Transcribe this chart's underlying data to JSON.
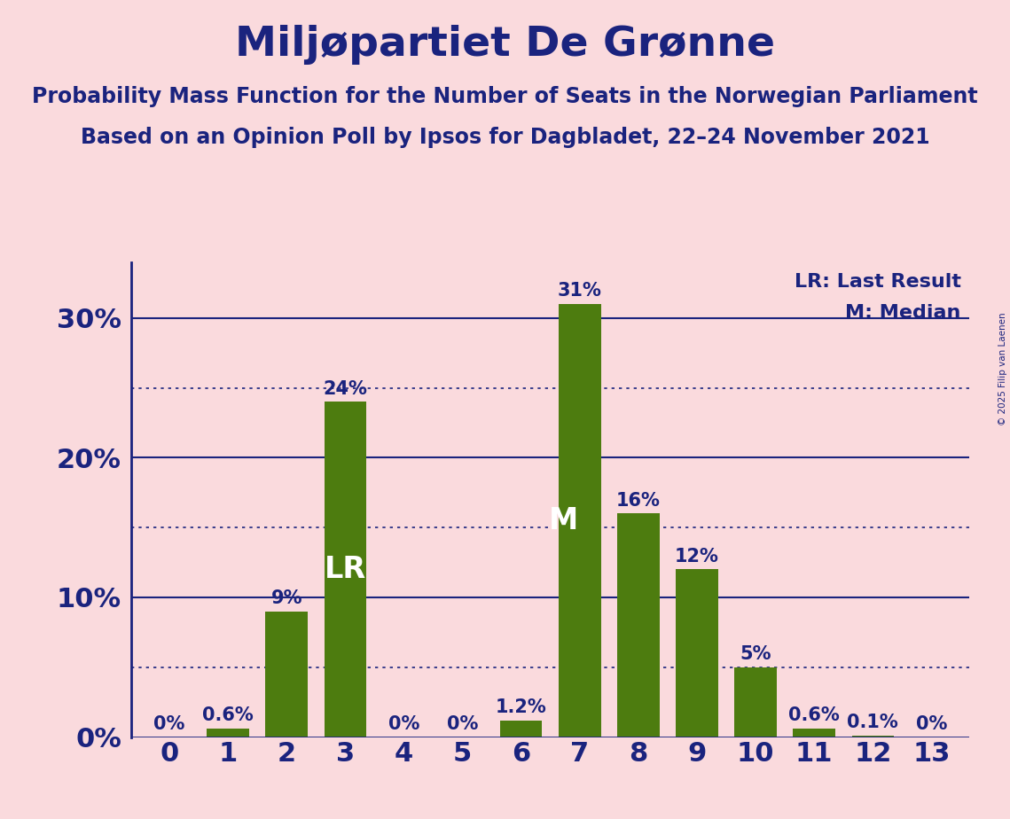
{
  "title": "Miljøpartiet De Grønne",
  "subtitle1": "Probability Mass Function for the Number of Seats in the Norwegian Parliament",
  "subtitle2": "Based on an Opinion Poll by Ipsos for Dagbladet, 22–24 November 2021",
  "copyright": "© 2025 Filip van Laenen",
  "categories": [
    0,
    1,
    2,
    3,
    4,
    5,
    6,
    7,
    8,
    9,
    10,
    11,
    12,
    13
  ],
  "values": [
    0.0,
    0.6,
    9.0,
    24.0,
    0.0,
    0.0,
    1.2,
    31.0,
    16.0,
    12.0,
    5.0,
    0.6,
    0.1,
    0.0
  ],
  "bar_labels": [
    "0%",
    "0.6%",
    "9%",
    "24%",
    "0%",
    "0%",
    "1.2%",
    "31%",
    "16%",
    "12%",
    "5%",
    "0.6%",
    "0.1%",
    "0%"
  ],
  "bar_color": "#4d7c0f",
  "background_color": "#fadadd",
  "text_color": "#1a237e",
  "title_fontsize": 34,
  "subtitle_fontsize": 17,
  "axis_tick_fontsize": 22,
  "bar_label_fontsize": 15,
  "ytick_labels": [
    "0%",
    "10%",
    "20%",
    "30%"
  ],
  "ytick_values": [
    0,
    10,
    20,
    30
  ],
  "ylim": [
    0,
    34
  ],
  "xlim": [
    -0.65,
    13.65
  ],
  "lr_bar": 3,
  "median_bar": 7,
  "lr_label": "LR",
  "median_label": "M",
  "legend_lr": "LR: Last Result",
  "legend_m": "M: Median",
  "solid_gridlines": [
    10,
    20,
    30
  ],
  "dotted_gridlines": [
    5,
    15,
    25
  ],
  "bar_width": 0.72
}
